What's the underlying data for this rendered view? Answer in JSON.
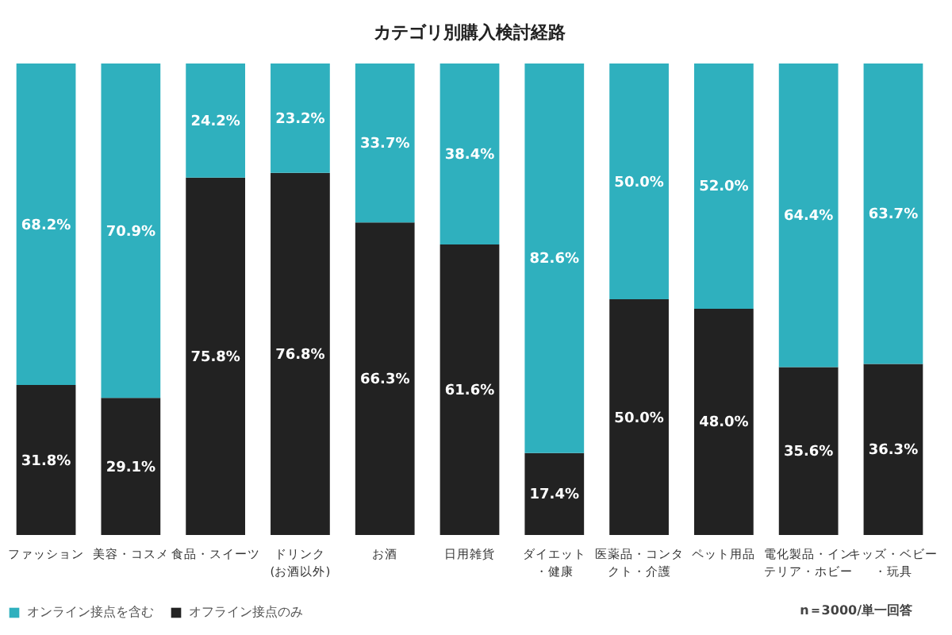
{
  "chart_data": {
    "type": "bar",
    "stacked": true,
    "title": "カテゴリ別購入検討経路",
    "categories": [
      "ファッション",
      "美容・コスメ",
      "食品・スイーツ",
      "ドリンク(お酒以外)",
      "お酒",
      "日用雑貨",
      "ダイエット・健康",
      "医薬品・コンタクト・介護",
      "ペット用品",
      "電化製品・インテリア・ホビー",
      "キッズ・ベビー・玩具"
    ],
    "series": [
      {
        "name": "オフライン接点のみ",
        "color": "#222222",
        "values": [
          31.8,
          29.1,
          75.8,
          76.8,
          66.3,
          61.6,
          17.4,
          50.0,
          48.0,
          35.6,
          36.3
        ],
        "value_labels": [
          "31.8%",
          "29.1%",
          "75.8%",
          "76.8%",
          "66.3%",
          "61.6%",
          "17.4%",
          "50.0%",
          "48.0%",
          "35.6%",
          "36.3%"
        ]
      },
      {
        "name": "オンライン接点を含む",
        "color": "#2fb0be",
        "values": [
          68.2,
          70.9,
          24.2,
          23.2,
          33.7,
          38.4,
          82.6,
          50.0,
          52.0,
          64.4,
          63.7
        ],
        "value_labels": [
          "68.2%",
          "70.9%",
          "24.2%",
          "23.2%",
          "33.7%",
          "38.4%",
          "82.6%",
          "50.0%",
          "52.0%",
          "64.4%",
          "63.7%"
        ]
      }
    ],
    "legend": "bottom",
    "grid": false,
    "annotations": [
      "n＝3000/単一回答"
    ]
  }
}
